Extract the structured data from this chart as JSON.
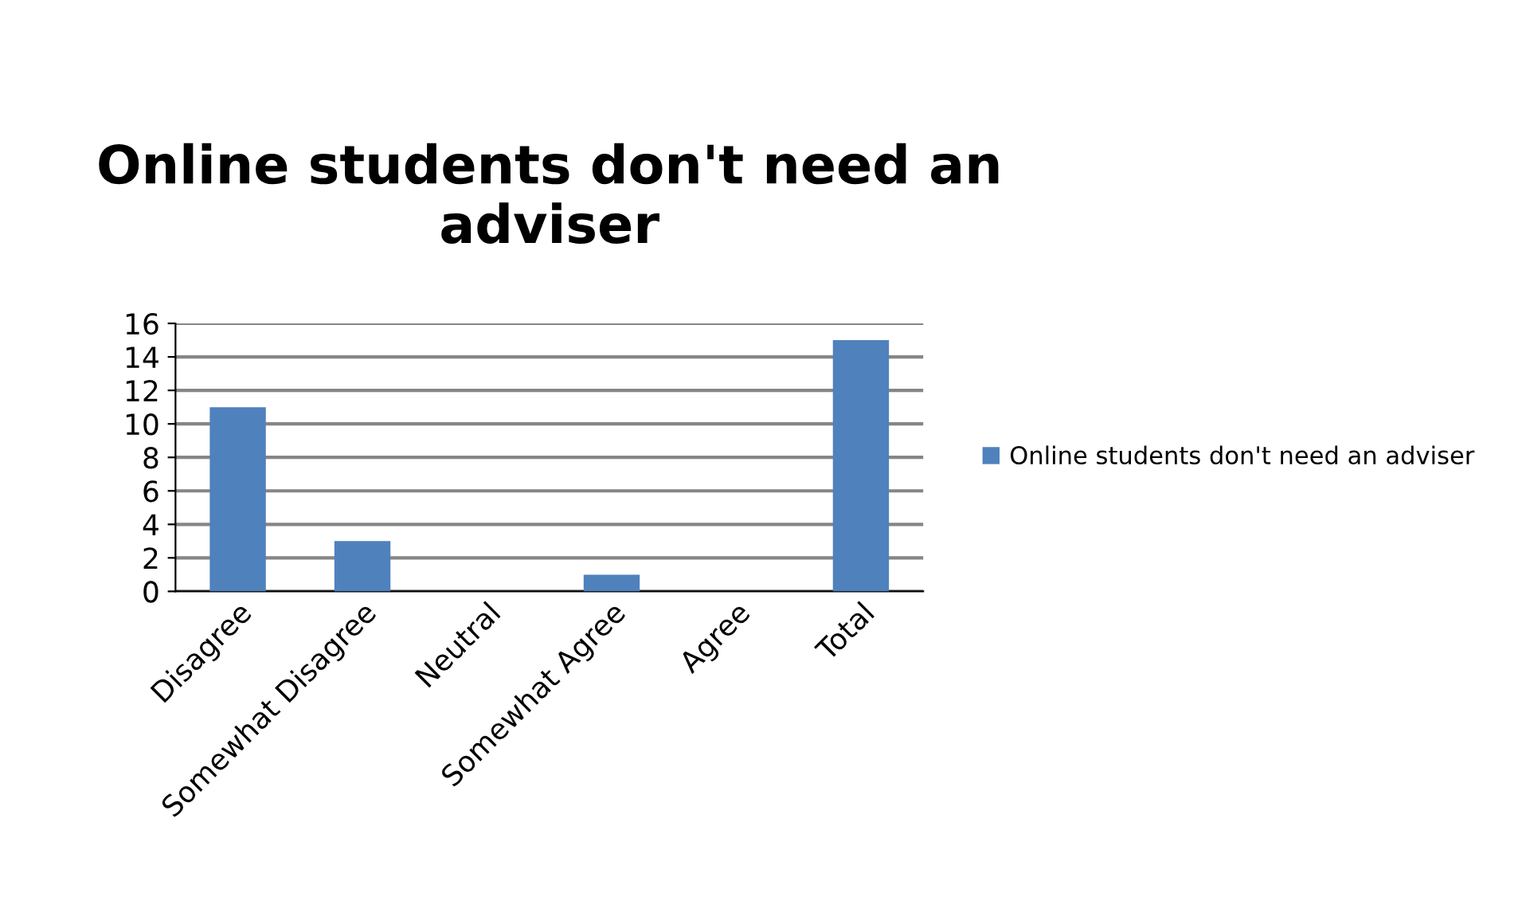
{
  "chart_data": {
    "type": "bar",
    "title": "Online students don't need an adviser",
    "categories": [
      "Disagree",
      "Somewhat Disagree",
      "Neutral",
      "Somewhat Agree",
      "Agree",
      "Total"
    ],
    "series": [
      {
        "name": "Online students don't need an adviser",
        "color": "#4f81bd",
        "values": [
          11,
          3,
          0,
          1,
          0,
          15
        ]
      }
    ],
    "ylim": [
      0,
      16
    ],
    "yticks": [
      0,
      2,
      4,
      6,
      8,
      10,
      12,
      14,
      16
    ],
    "grid": "y",
    "legend": "right"
  }
}
